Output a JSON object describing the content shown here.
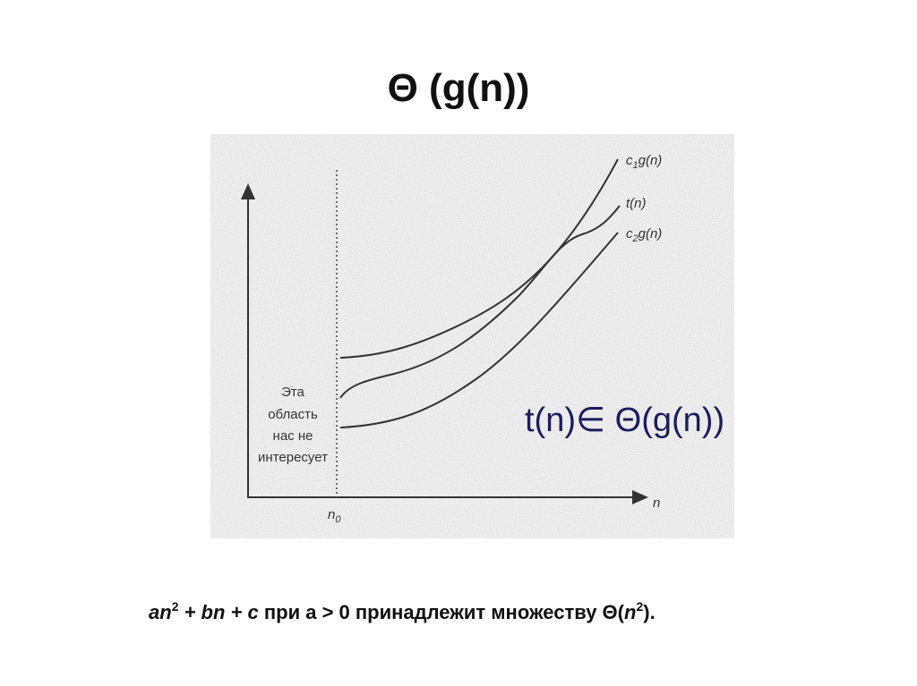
{
  "header": {
    "title": "Θ (g(n))"
  },
  "figure": {
    "curve_labels": [
      {
        "base": "c",
        "sub": "1",
        "rest": "g(n)"
      },
      {
        "base": "t(n)"
      },
      {
        "base": "c",
        "sub": "2",
        "rest": "g(n)"
      }
    ],
    "x_axis_label": "n",
    "threshold_label": {
      "base": "n",
      "sub": "0"
    },
    "region_text": [
      "Эта",
      "область",
      "нас не",
      "интересует"
    ]
  },
  "statement": "t(n)∈ Θ(g(n))",
  "footer": [
    "an",
    "2",
    " + bn + c",
    " при а > 0 принадлежит множеству Θ(",
    "n",
    "2",
    ")."
  ]
}
